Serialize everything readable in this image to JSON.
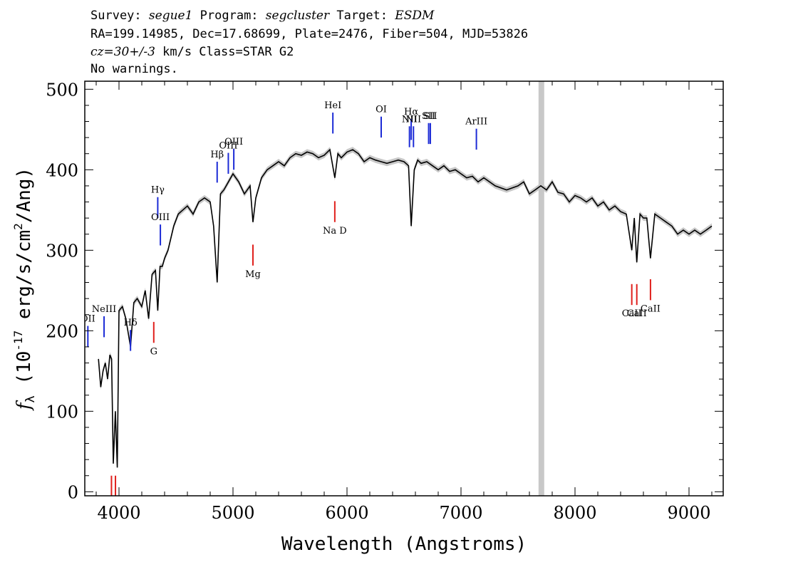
{
  "header": {
    "survey_label": "Survey:",
    "survey": "segue1",
    "program_label": "Program:",
    "program": "segcluster",
    "target_label": "Target:",
    "target": "ESDM",
    "line2": "RA=199.14985, Dec=17.68699, Plate=2476, Fiber=504, MJD=53826",
    "cz": "cz=30+/-3",
    "line3_rest": " km/s Class=STAR G2",
    "line4": "No warnings."
  },
  "chart_data": {
    "type": "line",
    "xlabel": "Wavelength (Angstroms)",
    "ylabel": "f_λ (10^-17 erg/s/cm^2/Ang)",
    "xlim": [
      3700,
      9300
    ],
    "ylim": [
      -5,
      510
    ],
    "xticks": [
      4000,
      5000,
      6000,
      7000,
      8000,
      9000
    ],
    "yticks": [
      0,
      100,
      200,
      300,
      400,
      500
    ],
    "series": [
      {
        "x": [
          3820,
          3840,
          3860,
          3880,
          3900,
          3920,
          3935,
          3950,
          3968,
          3985,
          4000,
          4030,
          4060,
          4101,
          4130,
          4160,
          4200,
          4230,
          4260,
          4290,
          4320,
          4340,
          4360,
          4380,
          4400,
          4430,
          4480,
          4520,
          4560,
          4600,
          4650,
          4700,
          4750,
          4800,
          4830,
          4861,
          4890,
          4920,
          4960,
          5000,
          5050,
          5100,
          5150,
          5175,
          5200,
          5250,
          5300,
          5350,
          5400,
          5450,
          5500,
          5550,
          5600,
          5650,
          5700,
          5750,
          5800,
          5850,
          5893,
          5920,
          5950,
          6000,
          6050,
          6100,
          6150,
          6200,
          6250,
          6300,
          6350,
          6400,
          6450,
          6500,
          6540,
          6563,
          6590,
          6620,
          6650,
          6700,
          6750,
          6800,
          6850,
          6900,
          6950,
          7000,
          7050,
          7100,
          7150,
          7200,
          7300,
          7400,
          7500,
          7550,
          7600,
          7650,
          7700,
          7750,
          7800,
          7850,
          7900,
          7950,
          8000,
          8050,
          8100,
          8150,
          8200,
          8250,
          8300,
          8350,
          8400,
          8450,
          8498,
          8520,
          8542,
          8570,
          8600,
          8630,
          8662,
          8700,
          8750,
          8800,
          8850,
          8900,
          8950,
          9000,
          9050,
          9100,
          9150,
          9200
        ],
        "values": [
          165,
          130,
          150,
          160,
          140,
          170,
          165,
          35,
          100,
          30,
          225,
          230,
          215,
          180,
          235,
          240,
          230,
          250,
          215,
          270,
          275,
          225,
          280,
          280,
          290,
          300,
          330,
          345,
          350,
          355,
          345,
          360,
          365,
          360,
          330,
          260,
          370,
          375,
          385,
          395,
          385,
          370,
          380,
          335,
          365,
          390,
          400,
          405,
          410,
          405,
          415,
          420,
          418,
          422,
          420,
          415,
          418,
          425,
          390,
          420,
          415,
          422,
          425,
          420,
          410,
          415,
          412,
          410,
          408,
          410,
          412,
          410,
          405,
          330,
          400,
          412,
          408,
          410,
          405,
          400,
          405,
          398,
          400,
          395,
          390,
          392,
          385,
          390,
          380,
          375,
          380,
          385,
          370,
          375,
          380,
          375,
          385,
          372,
          370,
          360,
          368,
          365,
          360,
          365,
          355,
          360,
          350,
          355,
          348,
          345,
          300,
          340,
          285,
          345,
          340,
          340,
          290,
          345,
          340,
          335,
          330,
          320,
          325,
          320,
          325,
          320,
          325,
          330
        ]
      }
    ],
    "masked_region": [
      7680,
      7730
    ],
    "line_markers": {
      "emission": [
        {
          "label": "NeIII",
          "x": 3869,
          "y_bottom": 192,
          "y_top": 218
        },
        {
          "label": "Hδ",
          "x": 4101,
          "y_bottom": 175,
          "y_top": 201
        },
        {
          "label": "Hγ",
          "x": 4340,
          "y_bottom": 340,
          "y_top": 366
        },
        {
          "label": "OIII",
          "x": 4363,
          "y_bottom": 306,
          "y_top": 332
        },
        {
          "label": "Hβ",
          "x": 4861,
          "y_bottom": 384,
          "y_top": 410
        },
        {
          "label": "OIII",
          "x": 4959,
          "y_bottom": 395,
          "y_top": 421
        },
        {
          "label": "OIII",
          "x": 5007,
          "y_bottom": 400,
          "y_top": 426
        },
        {
          "label": "HeI",
          "x": 5876,
          "y_bottom": 445,
          "y_top": 471
        },
        {
          "label": "OI",
          "x": 6300,
          "y_bottom": 440,
          "y_top": 466
        },
        {
          "label": "NII",
          "x": 6548,
          "y_bottom": 428,
          "y_top": 454
        },
        {
          "label": "Hα",
          "x": 6563,
          "y_bottom": 437,
          "y_top": 463
        },
        {
          "label": "NII",
          "x": 6583,
          "y_bottom": 428,
          "y_top": 454
        },
        {
          "label": "SII",
          "x": 6716,
          "y_bottom": 432,
          "y_top": 458
        },
        {
          "label": "SII",
          "x": 6731,
          "y_bottom": 432,
          "y_top": 458
        },
        {
          "label": "ArIII",
          "x": 7135,
          "y_bottom": 425,
          "y_top": 451
        },
        {
          "label": "OII",
          "x": 3727,
          "y_bottom": 180,
          "y_top": 206
        }
      ],
      "absorption": [
        {
          "label": "",
          "x": 3934,
          "y_bottom": -5,
          "y_top": 20
        },
        {
          "label": "",
          "x": 3969,
          "y_bottom": -5,
          "y_top": 20
        },
        {
          "label": "G",
          "x": 4305,
          "y_bottom": 185,
          "y_top": 211
        },
        {
          "label": "Mg",
          "x": 5175,
          "y_bottom": 281,
          "y_top": 307
        },
        {
          "label": "Na D",
          "x": 5893,
          "y_bottom": 335,
          "y_top": 361
        },
        {
          "label": "CaII",
          "x": 8498,
          "y_bottom": 232,
          "y_top": 258
        },
        {
          "label": "CaII",
          "x": 8542,
          "y_bottom": 232,
          "y_top": 258
        },
        {
          "label": "CaII",
          "x": 8662,
          "y_bottom": 238,
          "y_top": 264
        }
      ]
    },
    "colors": {
      "spectrum": "#000000",
      "error_band": "#c8c8c8",
      "emission": "#1c2bd6",
      "absorption": "#e0201c",
      "mask": "#c8c8c8"
    }
  }
}
